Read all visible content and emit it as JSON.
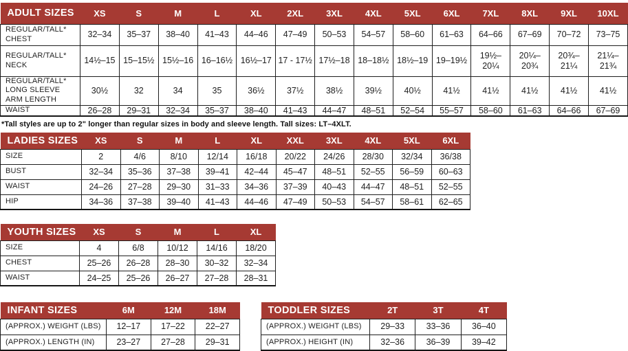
{
  "page": {
    "footnote": "*Tall styles are up to 2\" longer than regular sizes in body and sleeve length. Tall sizes: LT–4XLT."
  },
  "colors": {
    "header_bg": "#A63A33",
    "header_text": "#FFFFFF",
    "border": "#1D1D1D",
    "text": "#1E1E1E"
  },
  "tables": {
    "adult": {
      "title": "ADULT SIZES",
      "columns": [
        "XS",
        "S",
        "M",
        "L",
        "XL",
        "2XL",
        "3XL",
        "4XL",
        "5XL",
        "6XL",
        "7XL",
        "8XL",
        "9XL",
        "10XL"
      ],
      "rows": [
        {
          "label": "REGULAR/TALL*\nCHEST",
          "values": [
            "32–34",
            "35–37",
            "38–40",
            "41–43",
            "44–46",
            "47–49",
            "50–53",
            "54–57",
            "58–60",
            "61–63",
            "64–66",
            "67–69",
            "70–72",
            "73–75"
          ]
        },
        {
          "label": "REGULAR/TALL*\nNECK",
          "values": [
            "14½–15",
            "15–15½",
            "15½–16",
            "16–16½",
            "16½–17",
            "17 - 17½",
            "17½–18",
            "18–18½",
            "18½–19",
            "19–19½",
            "19½–\n20¼",
            "20¼–\n20¾",
            "20¾–\n21¼",
            "21¼–\n21¾"
          ]
        },
        {
          "label": "REGULAR/TALL*\nLONG SLEEVE\nARM LENGTH",
          "values": [
            "30½",
            "32",
            "34",
            "35",
            "36½",
            "37½",
            "38½",
            "39½",
            "40½",
            "41½",
            "41½",
            "41½",
            "41½",
            "41½"
          ]
        },
        {
          "label": "WAIST",
          "values": [
            "26–28",
            "29–31",
            "32–34",
            "35–37",
            "38–40",
            "41–43",
            "44–47",
            "48–51",
            "52–54",
            "55–57",
            "58–60",
            "61–63",
            "64–66",
            "67–69"
          ]
        }
      ]
    },
    "ladies": {
      "title": "LADIES SIZES",
      "columns": [
        "XS",
        "S",
        "M",
        "L",
        "XL",
        "XXL",
        "3XL",
        "4XL",
        "5XL",
        "6XL"
      ],
      "rows": [
        {
          "label": "SIZE",
          "values": [
            "2",
            "4/6",
            "8/10",
            "12/14",
            "16/18",
            "20/22",
            "24/26",
            "28/30",
            "32/34",
            "36/38"
          ]
        },
        {
          "label": "BUST",
          "values": [
            "32–34",
            "35–36",
            "37–38",
            "39–41",
            "42–44",
            "45–47",
            "48–51",
            "52–55",
            "56–59",
            "60–63"
          ]
        },
        {
          "label": "WAIST",
          "values": [
            "24–26",
            "27–28",
            "29–30",
            "31–33",
            "34–36",
            "37–39",
            "40–43",
            "44–47",
            "48–51",
            "52–55"
          ]
        },
        {
          "label": "HIP",
          "values": [
            "34–36",
            "37–38",
            "39–40",
            "41–43",
            "44–46",
            "47–49",
            "50–53",
            "54–57",
            "58–61",
            "62–65"
          ]
        }
      ]
    },
    "youth": {
      "title": "YOUTH SIZES",
      "columns": [
        "XS",
        "S",
        "M",
        "L",
        "XL"
      ],
      "rows": [
        {
          "label": "SIZE",
          "values": [
            "4",
            "6/8",
            "10/12",
            "14/16",
            "18/20"
          ]
        },
        {
          "label": "CHEST",
          "values": [
            "25–26",
            "26–28",
            "28–30",
            "30–32",
            "32–34"
          ]
        },
        {
          "label": "WAIST",
          "values": [
            "24–25",
            "25–26",
            "26–27",
            "27–28",
            "28–31"
          ]
        }
      ]
    },
    "infant": {
      "title": "INFANT SIZES",
      "columns": [
        "6M",
        "12M",
        "18M"
      ],
      "rows": [
        {
          "label": "(APPROX.) WEIGHT (LBS)",
          "values": [
            "12–17",
            "17–22",
            "22–27"
          ]
        },
        {
          "label": "(APPROX.) LENGTH (IN)",
          "values": [
            "23–27",
            "27–28",
            "29–31"
          ]
        }
      ]
    },
    "toddler": {
      "title": "TODDLER SIZES",
      "columns": [
        "2T",
        "3T",
        "4T"
      ],
      "rows": [
        {
          "label": "(APPROX.) WEIGHT (LBS)",
          "values": [
            "29–33",
            "33–36",
            "36–40"
          ]
        },
        {
          "label": "(APPROX.) HEIGHT (IN)",
          "values": [
            "32–36",
            "36–39",
            "39–42"
          ]
        }
      ]
    }
  }
}
